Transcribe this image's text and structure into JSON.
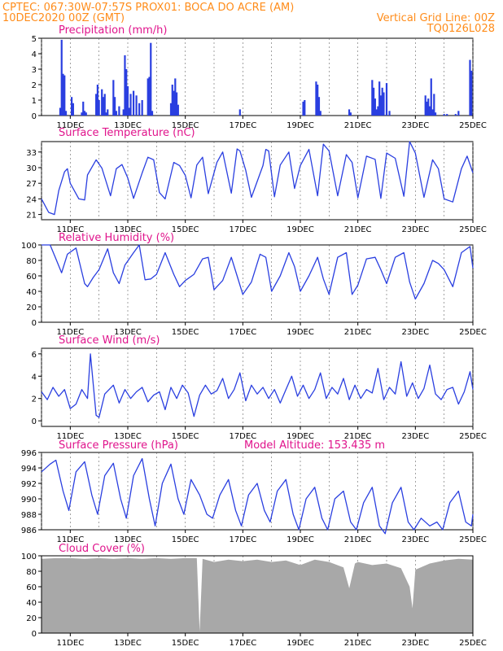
{
  "header": {
    "line1_left": "CPTEC:   067:30W-07:57S   PROX01: BOCA DO ACRE (AM)",
    "line2_left": "10DEC2020 00Z (GMT)",
    "line2_right": "Vertical Grid Line: 00Z",
    "line3_right": "TQ0126L028"
  },
  "colors": {
    "header": "#ff8c1a",
    "title": "#e0148c",
    "line": "#2a3fe0",
    "bar": "#2a3fe0",
    "cloud": "#a8a8a8",
    "grid": "#666666"
  },
  "chart_data": [
    {
      "type": "bar",
      "title": "Precipitation (mm/h)",
      "x_tick_labels": [
        "11DEC",
        "13DEC",
        "15DEC",
        "17DEC",
        "19DEC",
        "21DEC",
        "23DEC",
        "25DEC"
      ],
      "x_tick_days": [
        11,
        13,
        15,
        17,
        19,
        21,
        23,
        25
      ],
      "xlim_days": [
        10,
        25
      ],
      "ylim": [
        0,
        5
      ],
      "y_ticks": [
        0,
        1,
        2,
        3,
        4,
        5
      ],
      "x_days": [
        10.65,
        10.7,
        10.75,
        10.8,
        10.85,
        11.05,
        11.1,
        11.4,
        11.45,
        11.5,
        11.55,
        11.9,
        11.95,
        12.0,
        12.1,
        12.15,
        12.2,
        12.25,
        12.3,
        12.5,
        12.55,
        12.6,
        12.7,
        12.85,
        12.9,
        12.95,
        13.0,
        13.05,
        13.1,
        13.2,
        13.3,
        13.4,
        13.5,
        13.7,
        13.75,
        13.8,
        13.85,
        14.5,
        14.55,
        14.6,
        14.65,
        14.7,
        14.75,
        16.9,
        19.1,
        19.15,
        19.55,
        19.6,
        19.65,
        19.7,
        20.7,
        20.75,
        21.5,
        21.55,
        21.6,
        21.65,
        21.7,
        21.75,
        21.8,
        21.85,
        21.9,
        22.0,
        22.1,
        23.35,
        23.4,
        23.45,
        23.5,
        23.55,
        23.6,
        23.65,
        23.7,
        24.0,
        24.1,
        24.4,
        24.5,
        24.9,
        24.95
      ],
      "values": [
        0.5,
        4.9,
        2.7,
        2.6,
        0.3,
        1.2,
        0.8,
        0.2,
        0.9,
        0.3,
        0.2,
        1.4,
        2.0,
        1.0,
        1.7,
        1.2,
        1.4,
        0.2,
        0.4,
        2.3,
        1.2,
        0.3,
        0.6,
        0.4,
        3.9,
        3.0,
        1.9,
        0.5,
        1.4,
        1.6,
        1.3,
        0.8,
        1.0,
        2.4,
        2.5,
        4.7,
        0.3,
        0.8,
        2.0,
        1.6,
        2.4,
        1.5,
        0.7,
        0.4,
        0.9,
        1.0,
        2.2,
        2.0,
        1.2,
        0.3,
        0.4,
        0.2,
        2.3,
        1.8,
        1.1,
        0.4,
        0.6,
        2.2,
        1.3,
        1.8,
        1.5,
        2.1,
        0.3,
        1.3,
        0.9,
        1.1,
        0.6,
        2.4,
        0.4,
        1.4,
        0.2,
        0.1,
        0.1,
        0.1,
        0.3,
        3.6,
        2.9
      ]
    },
    {
      "type": "line",
      "title": "Surface Temperature (nC)",
      "x_tick_labels": [
        "11DEC",
        "13DEC",
        "15DEC",
        "17DEC",
        "19DEC",
        "21DEC",
        "23DEC",
        "25DEC"
      ],
      "x_tick_days": [
        11,
        13,
        15,
        17,
        19,
        21,
        23,
        25
      ],
      "xlim_days": [
        10,
        25
      ],
      "ylim": [
        20,
        35
      ],
      "y_ticks": [
        21,
        24,
        27,
        30,
        33
      ],
      "x_days": [
        10.0,
        10.25,
        10.45,
        10.6,
        10.8,
        10.9,
        11.0,
        11.3,
        11.5,
        11.6,
        11.9,
        12.1,
        12.4,
        12.6,
        12.8,
        13.0,
        13.2,
        13.5,
        13.7,
        13.9,
        14.1,
        14.3,
        14.6,
        14.8,
        15.0,
        15.2,
        15.4,
        15.6,
        15.8,
        16.1,
        16.3,
        16.6,
        16.8,
        16.9,
        17.1,
        17.3,
        17.7,
        17.8,
        17.9,
        18.1,
        18.3,
        18.6,
        18.8,
        19.0,
        19.3,
        19.6,
        19.8,
        20.0,
        20.3,
        20.6,
        20.8,
        21.0,
        21.3,
        21.6,
        21.8,
        22.0,
        22.3,
        22.6,
        22.8,
        23.0,
        23.3,
        23.6,
        23.8,
        24.0,
        24.3,
        24.6,
        24.8,
        25.0
      ],
      "values": [
        24.0,
        21.4,
        21.0,
        25.6,
        29.2,
        29.8,
        27.0,
        24.0,
        23.8,
        28.6,
        31.5,
        29.9,
        24.6,
        29.8,
        30.6,
        28.0,
        24.1,
        29.0,
        32.0,
        31.5,
        25.2,
        24.0,
        31.0,
        30.4,
        28.5,
        24.2,
        30.5,
        32.0,
        25.0,
        31.0,
        33.0,
        25.1,
        33.6,
        33.2,
        29.5,
        24.3,
        30.4,
        33.5,
        33.2,
        24.4,
        30.5,
        33.0,
        26.0,
        30.4,
        33.5,
        24.6,
        34.5,
        33.2,
        24.6,
        32.5,
        31.0,
        24.2,
        32.2,
        31.6,
        24.1,
        32.8,
        31.8,
        24.5,
        35.0,
        32.8,
        24.3,
        31.5,
        29.8,
        24.0,
        23.4,
        29.8,
        32.2,
        29.0
      ]
    },
    {
      "type": "line",
      "title": "Relative Humidity (%)",
      "x_tick_labels": [
        "11DEC",
        "13DEC",
        "15DEC",
        "17DEC",
        "19DEC",
        "21DEC",
        "23DEC",
        "25DEC"
      ],
      "x_tick_days": [
        11,
        13,
        15,
        17,
        19,
        21,
        23,
        25
      ],
      "xlim_days": [
        10,
        25
      ],
      "ylim": [
        0,
        100
      ],
      "y_ticks": [
        0,
        20,
        40,
        60,
        80,
        100
      ],
      "x_days": [
        10.0,
        10.3,
        10.5,
        10.7,
        10.9,
        11.2,
        11.5,
        11.6,
        11.8,
        12.0,
        12.3,
        12.5,
        12.7,
        12.9,
        13.2,
        13.4,
        13.6,
        13.8,
        14.0,
        14.3,
        14.6,
        14.8,
        15.0,
        15.3,
        15.6,
        15.8,
        16.0,
        16.3,
        16.6,
        16.8,
        17.0,
        17.3,
        17.6,
        17.8,
        18.0,
        18.3,
        18.6,
        18.8,
        19.0,
        19.3,
        19.6,
        19.8,
        20.0,
        20.3,
        20.6,
        20.8,
        21.0,
        21.3,
        21.6,
        21.8,
        22.0,
        22.3,
        22.6,
        22.8,
        23.0,
        23.3,
        23.6,
        23.8,
        24.0,
        24.3,
        24.6,
        24.9,
        25.0
      ],
      "values": [
        100,
        100,
        82,
        64,
        88,
        96,
        50,
        46,
        58,
        68,
        95,
        64,
        50,
        74,
        90,
        100,
        55,
        56,
        62,
        90,
        62,
        46,
        54,
        62,
        82,
        84,
        42,
        54,
        84,
        60,
        36,
        52,
        88,
        84,
        40,
        60,
        90,
        72,
        40,
        60,
        84,
        56,
        36,
        84,
        90,
        36,
        48,
        82,
        84,
        68,
        50,
        84,
        90,
        52,
        30,
        50,
        80,
        76,
        68,
        46,
        90,
        98,
        70
      ]
    },
    {
      "type": "line",
      "title": "Surface Wind (m/s)",
      "x_tick_labels": [
        "11DEC",
        "13DEC",
        "15DEC",
        "17DEC",
        "19DEC",
        "21DEC",
        "23DEC",
        "25DEC"
      ],
      "x_tick_days": [
        11,
        13,
        15,
        17,
        19,
        21,
        23,
        25
      ],
      "xlim_days": [
        10,
        25
      ],
      "ylim": [
        -0.5,
        6.5
      ],
      "y_ticks": [
        0,
        2,
        4,
        6
      ],
      "x_days": [
        10.0,
        10.2,
        10.4,
        10.6,
        10.8,
        11.0,
        11.2,
        11.4,
        11.6,
        11.7,
        11.9,
        12.0,
        12.2,
        12.5,
        12.7,
        12.9,
        13.1,
        13.3,
        13.5,
        13.7,
        13.9,
        14.1,
        14.3,
        14.5,
        14.7,
        14.9,
        15.1,
        15.3,
        15.5,
        15.7,
        15.9,
        16.1,
        16.3,
        16.5,
        16.7,
        16.9,
        17.1,
        17.3,
        17.5,
        17.7,
        17.9,
        18.1,
        18.3,
        18.5,
        18.7,
        18.9,
        19.1,
        19.3,
        19.5,
        19.7,
        19.9,
        20.1,
        20.3,
        20.5,
        20.7,
        20.9,
        21.1,
        21.3,
        21.5,
        21.7,
        21.9,
        22.1,
        22.3,
        22.5,
        22.7,
        22.9,
        23.1,
        23.3,
        23.5,
        23.7,
        23.9,
        24.1,
        24.3,
        24.5,
        24.7,
        24.9,
        25.0
      ],
      "values": [
        2.6,
        1.9,
        3.0,
        2.2,
        2.8,
        1.1,
        1.5,
        2.8,
        2.0,
        6.0,
        0.5,
        0.3,
        2.4,
        3.2,
        1.6,
        2.8,
        2.0,
        2.6,
        3.0,
        1.7,
        2.3,
        2.6,
        1.0,
        3.0,
        2.0,
        3.2,
        2.5,
        0.4,
        2.3,
        3.2,
        2.4,
        2.7,
        3.8,
        2.0,
        2.8,
        4.3,
        1.8,
        3.2,
        2.4,
        3.0,
        2.0,
        2.8,
        1.6,
        2.8,
        4.0,
        2.2,
        3.2,
        2.0,
        2.8,
        4.3,
        2.0,
        3.0,
        2.4,
        3.8,
        1.9,
        3.2,
        2.0,
        2.8,
        2.5,
        4.7,
        1.9,
        3.0,
        2.4,
        5.3,
        2.2,
        3.4,
        2.0,
        2.9,
        5.0,
        2.4,
        1.9,
        2.8,
        3.0,
        1.5,
        2.6,
        4.4,
        2.8
      ]
    },
    {
      "type": "line",
      "title": "Surface Pressure (hPa)",
      "annotation": "Model Altitude: 153.435 m",
      "x_tick_labels": [
        "11DEC",
        "13DEC",
        "15DEC",
        "17DEC",
        "19DEC",
        "21DEC",
        "23DEC",
        "25DEC"
      ],
      "x_tick_days": [
        11,
        13,
        15,
        17,
        19,
        21,
        23,
        25
      ],
      "xlim_days": [
        10,
        25
      ],
      "ylim": [
        986,
        996
      ],
      "y_ticks": [
        986,
        988,
        990,
        992,
        994,
        996
      ],
      "x_days": [
        10.0,
        10.3,
        10.5,
        10.75,
        10.95,
        11.2,
        11.5,
        11.75,
        11.95,
        12.2,
        12.5,
        12.75,
        12.95,
        13.2,
        13.5,
        13.75,
        13.95,
        14.2,
        14.5,
        14.75,
        14.95,
        15.2,
        15.5,
        15.75,
        15.95,
        16.2,
        16.5,
        16.75,
        16.95,
        17.2,
        17.5,
        17.75,
        17.95,
        18.2,
        18.5,
        18.75,
        18.95,
        19.2,
        19.5,
        19.75,
        19.95,
        20.2,
        20.5,
        20.75,
        20.95,
        21.2,
        21.5,
        21.75,
        21.95,
        22.2,
        22.5,
        22.75,
        22.95,
        23.2,
        23.5,
        23.75,
        23.95,
        24.2,
        24.5,
        24.75,
        24.95,
        25.0
      ],
      "values": [
        993.5,
        994.5,
        995.0,
        991.0,
        988.5,
        993.5,
        994.8,
        990.5,
        988.0,
        993.0,
        994.6,
        990.0,
        987.5,
        993.0,
        995.2,
        990.0,
        986.5,
        992.0,
        994.5,
        990.0,
        988.0,
        992.5,
        990.5,
        988.0,
        987.5,
        990.5,
        992.5,
        988.5,
        986.5,
        990.5,
        992.0,
        988.5,
        987.0,
        991.0,
        992.5,
        988.0,
        986.0,
        990.0,
        991.5,
        987.5,
        986.0,
        990.0,
        991.0,
        987.0,
        986.0,
        989.5,
        991.5,
        986.5,
        985.5,
        989.5,
        991.5,
        987.0,
        986.0,
        987.5,
        986.5,
        987.0,
        986.0,
        989.5,
        991.0,
        987.0,
        986.5,
        988.0
      ]
    },
    {
      "type": "area",
      "title": "Cloud Cover (%)",
      "x_tick_labels": [
        "11DEC",
        "13DEC",
        "15DEC",
        "17DEC",
        "19DEC",
        "21DEC",
        "23DEC",
        "25DEC"
      ],
      "x_tick_days": [
        11,
        13,
        15,
        17,
        19,
        21,
        23,
        25
      ],
      "xlim_days": [
        10,
        25
      ],
      "ylim": [
        0,
        100
      ],
      "y_ticks": [
        0,
        20,
        40,
        60,
        80,
        100
      ],
      "x_days": [
        10.0,
        10.5,
        11.0,
        11.5,
        12.0,
        12.5,
        13.0,
        13.5,
        14.0,
        14.5,
        15.0,
        15.4,
        15.5,
        15.6,
        16.0,
        16.5,
        17.0,
        17.5,
        18.0,
        18.5,
        19.0,
        19.5,
        20.0,
        20.5,
        20.7,
        20.9,
        21.0,
        21.5,
        22.0,
        22.5,
        22.8,
        22.9,
        23.0,
        23.5,
        24.0,
        24.5,
        25.0
      ],
      "values": [
        96,
        97,
        97,
        96,
        97,
        96,
        97,
        96,
        97,
        96,
        97,
        97,
        2,
        96,
        92,
        95,
        93,
        95,
        92,
        94,
        88,
        95,
        92,
        85,
        58,
        90,
        92,
        88,
        90,
        84,
        60,
        32,
        82,
        90,
        94,
        96,
        95
      ]
    }
  ]
}
